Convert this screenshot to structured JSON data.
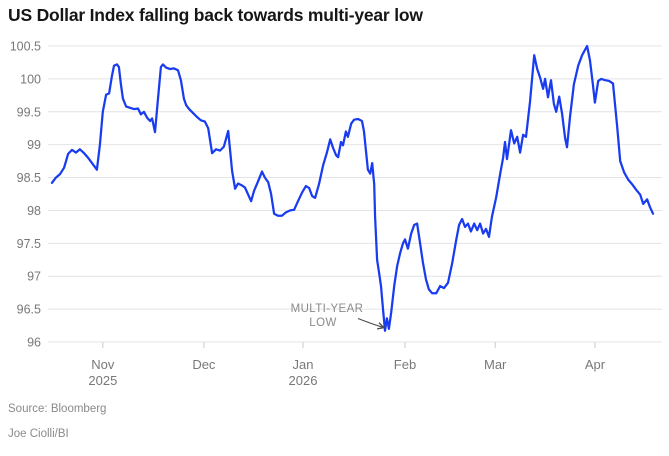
{
  "title": "US Dollar Index falling back towards multi-year low",
  "source": "Source: Bloomberg",
  "credit": "Joe Ciolli/BI",
  "annotation": {
    "line1": "MULTI-YEAR",
    "line2": "LOW"
  },
  "colors": {
    "line": "#1a3cf0",
    "grid": "#e4e4e4",
    "tick": "#c9c9c9",
    "axis_text": "#787878",
    "annotation_text": "#8a8a8a",
    "arrow": "#4d4d4d",
    "title_text": "#161616",
    "background": "#ffffff"
  },
  "chart_data": {
    "type": "line",
    "title": "US Dollar Index falling back towards multi-year low",
    "xlabel": "",
    "ylabel": "",
    "x_unit": "days since 2025-10-16 (span approx. mid-Oct 2025 to mid-Apr 2026)",
    "xlim": [
      0,
      183.2
    ],
    "ylim": [
      96,
      100.5
    ],
    "grid": "horizontal",
    "legend": "none",
    "y_ticks": {
      "values": [
        100.5,
        100,
        99.5,
        99,
        98.5,
        98,
        97.5,
        97,
        96.5,
        96
      ],
      "labels": [
        "100.5",
        "100",
        "99.5",
        "99",
        "98.5",
        "98",
        "97.5",
        "97",
        "96.5",
        "96"
      ]
    },
    "x_ticks": [
      {
        "day": 15.5,
        "label": "Nov",
        "sublabel": "2025"
      },
      {
        "day": 46.3,
        "label": "Dec",
        "sublabel": ""
      },
      {
        "day": 76.5,
        "label": "Jan",
        "sublabel": "2026"
      },
      {
        "day": 107.6,
        "label": "Feb",
        "sublabel": ""
      },
      {
        "day": 135.1,
        "label": "Mar",
        "sublabel": ""
      },
      {
        "day": 165.5,
        "label": "Apr",
        "sublabel": ""
      }
    ],
    "annotation": {
      "text": "MULTI-YEAR LOW",
      "points_to_day": 101.5,
      "points_to_value": 96.17
    },
    "series": [
      {
        "name": "US Dollar Index",
        "points": [
          [
            0,
            98.42
          ],
          [
            1.2,
            98.5
          ],
          [
            2.4,
            98.55
          ],
          [
            3.7,
            98.65
          ],
          [
            4.9,
            98.86
          ],
          [
            6.1,
            98.92
          ],
          [
            7.3,
            98.88
          ],
          [
            8.5,
            98.93
          ],
          [
            9.8,
            98.87
          ],
          [
            11,
            98.8
          ],
          [
            12.2,
            98.72
          ],
          [
            13.7,
            98.62
          ],
          [
            14.6,
            99
          ],
          [
            15.5,
            99.5
          ],
          [
            16.5,
            99.76
          ],
          [
            17.4,
            99.78
          ],
          [
            18.3,
            100.05
          ],
          [
            18.9,
            100.2
          ],
          [
            19.8,
            100.22
          ],
          [
            20.4,
            100.18
          ],
          [
            21,
            99.92
          ],
          [
            21.6,
            99.7
          ],
          [
            22.6,
            99.58
          ],
          [
            23.8,
            99.56
          ],
          [
            25,
            99.54
          ],
          [
            26.2,
            99.55
          ],
          [
            27.1,
            99.46
          ],
          [
            28,
            99.5
          ],
          [
            29,
            99.41
          ],
          [
            29.9,
            99.36
          ],
          [
            30.5,
            99.4
          ],
          [
            31.4,
            99.19
          ],
          [
            32.3,
            99.7
          ],
          [
            33.2,
            100.18
          ],
          [
            33.8,
            100.22
          ],
          [
            34.8,
            100.17
          ],
          [
            36,
            100.15
          ],
          [
            37.2,
            100.16
          ],
          [
            38.4,
            100.13
          ],
          [
            39.3,
            99.98
          ],
          [
            40.2,
            99.7
          ],
          [
            40.9,
            99.6
          ],
          [
            41.8,
            99.54
          ],
          [
            43,
            99.48
          ],
          [
            44.2,
            99.42
          ],
          [
            45.4,
            99.37
          ],
          [
            46.6,
            99.35
          ],
          [
            47.6,
            99.25
          ],
          [
            48.8,
            98.87
          ],
          [
            50,
            98.93
          ],
          [
            51.2,
            98.91
          ],
          [
            52.4,
            98.97
          ],
          [
            53.7,
            99.21
          ],
          [
            54.9,
            98.6
          ],
          [
            55.8,
            98.33
          ],
          [
            56.7,
            98.41
          ],
          [
            57.9,
            98.38
          ],
          [
            58.8,
            98.35
          ],
          [
            59.8,
            98.24
          ],
          [
            60.7,
            98.14
          ],
          [
            61.6,
            98.3
          ],
          [
            62.8,
            98.44
          ],
          [
            64,
            98.59
          ],
          [
            64.9,
            98.5
          ],
          [
            65.9,
            98.43
          ],
          [
            66.8,
            98.25
          ],
          [
            67.7,
            97.95
          ],
          [
            68.9,
            97.92
          ],
          [
            70.1,
            97.92
          ],
          [
            71.3,
            97.97
          ],
          [
            72.6,
            98
          ],
          [
            73.8,
            98.01
          ],
          [
            75,
            98.14
          ],
          [
            76.2,
            98.27
          ],
          [
            77.4,
            98.37
          ],
          [
            78.4,
            98.34
          ],
          [
            79.3,
            98.22
          ],
          [
            80.2,
            98.19
          ],
          [
            81.4,
            98.4
          ],
          [
            82.6,
            98.68
          ],
          [
            83.8,
            98.88
          ],
          [
            84.8,
            99.08
          ],
          [
            85.7,
            98.95
          ],
          [
            86.6,
            98.84
          ],
          [
            87.2,
            98.81
          ],
          [
            88.1,
            99.04
          ],
          [
            88.7,
            98.99
          ],
          [
            89.6,
            99.2
          ],
          [
            90.2,
            99.12
          ],
          [
            91.2,
            99.32
          ],
          [
            92.1,
            99.38
          ],
          [
            93.3,
            99.39
          ],
          [
            94.5,
            99.36
          ],
          [
            95.1,
            99.2
          ],
          [
            95.7,
            98.9
          ],
          [
            96.3,
            98.62
          ],
          [
            97,
            98.56
          ],
          [
            97.6,
            98.72
          ],
          [
            98.2,
            98.4
          ],
          [
            98.5,
            97.9
          ],
          [
            99.1,
            97.25
          ],
          [
            99.7,
            97.05
          ],
          [
            100.3,
            96.85
          ],
          [
            100.9,
            96.5
          ],
          [
            101.5,
            96.17
          ],
          [
            102.1,
            96.36
          ],
          [
            102.7,
            96.2
          ],
          [
            103.4,
            96.45
          ],
          [
            104.3,
            96.85
          ],
          [
            105.2,
            97.15
          ],
          [
            106.1,
            97.35
          ],
          [
            107,
            97.5
          ],
          [
            107.6,
            97.56
          ],
          [
            108.5,
            97.42
          ],
          [
            109.5,
            97.65
          ],
          [
            110.4,
            97.78
          ],
          [
            111.3,
            97.8
          ],
          [
            112.2,
            97.5
          ],
          [
            113.1,
            97.2
          ],
          [
            114,
            96.95
          ],
          [
            114.9,
            96.8
          ],
          [
            115.9,
            96.74
          ],
          [
            117.1,
            96.74
          ],
          [
            118.3,
            96.85
          ],
          [
            119.5,
            96.82
          ],
          [
            120.7,
            96.9
          ],
          [
            122,
            97.2
          ],
          [
            123.2,
            97.55
          ],
          [
            124.1,
            97.78
          ],
          [
            125,
            97.87
          ],
          [
            125.9,
            97.75
          ],
          [
            126.8,
            97.8
          ],
          [
            127.7,
            97.68
          ],
          [
            128.7,
            97.8
          ],
          [
            129.6,
            97.7
          ],
          [
            130.5,
            97.8
          ],
          [
            131.4,
            97.65
          ],
          [
            132.3,
            97.72
          ],
          [
            133.2,
            97.6
          ],
          [
            134.1,
            97.9
          ],
          [
            135.4,
            98.2
          ],
          [
            136.6,
            98.55
          ],
          [
            137.5,
            98.8
          ],
          [
            138.1,
            99.04
          ],
          [
            138.7,
            98.78
          ],
          [
            139.9,
            99.22
          ],
          [
            140.9,
            99.02
          ],
          [
            141.8,
            99.12
          ],
          [
            142.7,
            98.88
          ],
          [
            143.6,
            99.15
          ],
          [
            144.5,
            99.12
          ],
          [
            145.7,
            99.65
          ],
          [
            147,
            100.36
          ],
          [
            147.9,
            100.15
          ],
          [
            148.8,
            100.02
          ],
          [
            149.7,
            99.85
          ],
          [
            150.3,
            100
          ],
          [
            151.2,
            99.72
          ],
          [
            152.1,
            99.98
          ],
          [
            153,
            99.62
          ],
          [
            153.7,
            99.5
          ],
          [
            154.6,
            99.73
          ],
          [
            155.5,
            99.47
          ],
          [
            156.4,
            99.1
          ],
          [
            157,
            98.96
          ],
          [
            157.9,
            99.42
          ],
          [
            159.1,
            99.92
          ],
          [
            160.4,
            100.2
          ],
          [
            161.6,
            100.36
          ],
          [
            163.1,
            100.5
          ],
          [
            164,
            100.28
          ],
          [
            164.9,
            99.9
          ],
          [
            165.5,
            99.64
          ],
          [
            166.5,
            99.97
          ],
          [
            167.4,
            100
          ],
          [
            168.6,
            99.98
          ],
          [
            169.8,
            99.97
          ],
          [
            171,
            99.93
          ],
          [
            172.3,
            99.27
          ],
          [
            173.2,
            98.75
          ],
          [
            174.4,
            98.58
          ],
          [
            175.6,
            98.47
          ],
          [
            176.8,
            98.4
          ],
          [
            178,
            98.32
          ],
          [
            179.3,
            98.24
          ],
          [
            180.2,
            98.1
          ],
          [
            181.4,
            98.17
          ],
          [
            182.3,
            98.05
          ],
          [
            183.2,
            97.95
          ]
        ]
      }
    ]
  }
}
